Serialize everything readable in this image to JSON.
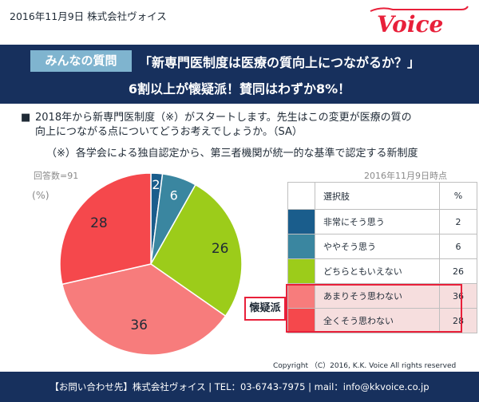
{
  "header": {
    "date_company": "2016年11月9日 株式会社ヴォイス",
    "logo_text": "Voice",
    "logo_color": "#e8203a"
  },
  "banner": {
    "badge": "みんなの質問",
    "headline_line1": "「新専門医制度は医療の質向上につながるか？」",
    "headline_line2": "6割以上が懐疑派！賛同はわずか8%！",
    "background": "#17305d",
    "badge_color": "#7fb4cf"
  },
  "question": {
    "bullet": "■",
    "line1": "2018年から新専門医制度（※）がスタートします。先生はこの変更が医療の質の",
    "line2": "向上につながる点についてどうお考えでしょうか。（SA）",
    "note": "（※）各学会による独自認定から、第三者機関が統一的な基準で認定する新制度"
  },
  "meta": {
    "n_count": "回答数=91",
    "unit": "(%)",
    "as_of": "2016年11月9日時点"
  },
  "legend_table": {
    "header_label": "選択肢",
    "header_value": "%",
    "skeptic_label": "懐疑派"
  },
  "chart_data": {
    "type": "pie",
    "start": "12 o'clock, clockwise",
    "slices": [
      {
        "label": "非常にそう思う",
        "value": 2,
        "color": "#1a5d8c"
      },
      {
        "label": "ややそう思う",
        "value": 6,
        "color": "#3a86a0"
      },
      {
        "label": "どちらともいえない",
        "value": 26,
        "color": "#9ccc1a"
      },
      {
        "label": "あまりそう思わない",
        "value": 36,
        "color": "#f77c7c"
      },
      {
        "label": "全くそう思わない",
        "value": 28,
        "color": "#f5484c"
      }
    ]
  },
  "footer": {
    "copyright": "Copyright （C）2016, K.K. Voice All rights reserved",
    "contact": "【お問い合わせ先】株式会社ヴォイス | TEL：03-6743-7975 | mail：info@kkvoice.co.jp"
  }
}
